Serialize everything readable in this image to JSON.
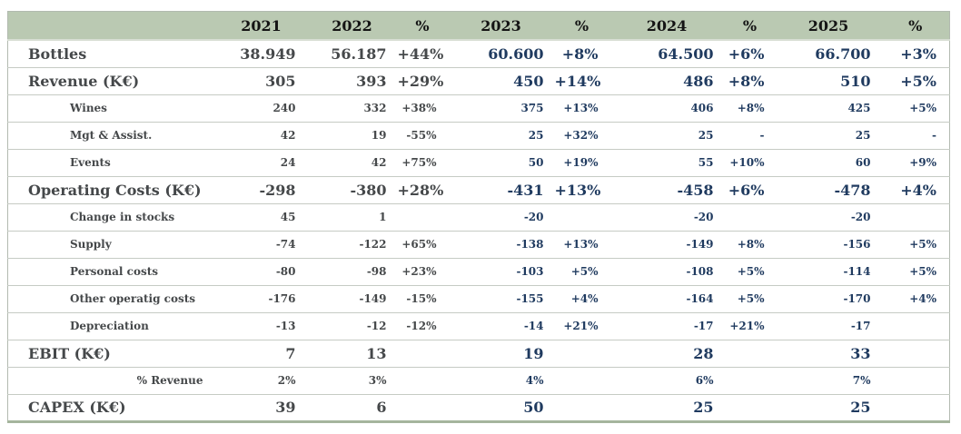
{
  "theme": {
    "header_bg": "#bac9b2",
    "header_text": "#141414",
    "past_years_text": "#45484a",
    "forecast_years_text": "#1f3a5f",
    "outer_border": "#b2bab0",
    "row_line": "#c6cbc4",
    "bottom_bar": "#a5b59d"
  },
  "table": {
    "columns": [
      "",
      "2021",
      "2022",
      "%",
      "2023",
      "%",
      "2024",
      "%",
      "2025",
      "%"
    ],
    "rows": [
      {
        "label": "Bottles",
        "level": "main",
        "cells": [
          "38.949",
          "56.187",
          "+44%",
          "60.600",
          "+8%",
          "64.500",
          "+6%",
          "66.700",
          "+3%"
        ]
      },
      {
        "label": "Revenue (K€)",
        "level": "main",
        "cells": [
          "305",
          "393",
          "+29%",
          "450",
          "+14%",
          "486",
          "+8%",
          "510",
          "+5%"
        ]
      },
      {
        "label": "Wines",
        "level": "sub",
        "cells": [
          "240",
          "332",
          "+38%",
          "375",
          "+13%",
          "406",
          "+8%",
          "425",
          "+5%"
        ]
      },
      {
        "label": "Mgt & Assist.",
        "level": "sub",
        "cells": [
          "42",
          "19",
          "-55%",
          "25",
          "+32%",
          "25",
          "-",
          "25",
          "-"
        ]
      },
      {
        "label": "Events",
        "level": "sub",
        "cells": [
          "24",
          "42",
          "+75%",
          "50",
          "+19%",
          "55",
          "+10%",
          "60",
          "+9%"
        ]
      },
      {
        "label": "Operating Costs (K€)",
        "level": "main",
        "cells": [
          "-298",
          "-380",
          "+28%",
          "-431",
          "+13%",
          "-458",
          "+6%",
          "-478",
          "+4%"
        ]
      },
      {
        "label": "Change in stocks",
        "level": "sub",
        "cells": [
          "45",
          "1",
          "",
          "-20",
          "",
          "-20",
          "",
          "-20",
          ""
        ]
      },
      {
        "label": "Supply",
        "level": "sub",
        "cells": [
          "-74",
          "-122",
          "+65%",
          "-138",
          "+13%",
          "-149",
          "+8%",
          "-156",
          "+5%"
        ]
      },
      {
        "label": "Personal costs",
        "level": "sub",
        "cells": [
          "-80",
          "-98",
          "+23%",
          "-103",
          "+5%",
          "-108",
          "+5%",
          "-114",
          "+5%"
        ]
      },
      {
        "label": "Other operatig costs",
        "level": "sub",
        "cells": [
          "-176",
          "-149",
          "-15%",
          "-155",
          "+4%",
          "-164",
          "+5%",
          "-170",
          "+4%"
        ]
      },
      {
        "label": "Depreciation",
        "level": "sub",
        "cells": [
          "-13",
          "-12",
          "-12%",
          "-14",
          "+21%",
          "-17",
          "+21%",
          "-17",
          ""
        ]
      },
      {
        "label": "EBIT (K€)",
        "level": "main",
        "cells": [
          "7",
          "13",
          "",
          "19",
          "",
          "28",
          "",
          "33",
          ""
        ]
      },
      {
        "label": "% Revenue",
        "level": "sub2",
        "cells": [
          "2%",
          "3%",
          "",
          "4%",
          "",
          "6%",
          "",
          "7%",
          ""
        ]
      },
      {
        "label": "CAPEX (K€)",
        "level": "main",
        "cells": [
          "39",
          "6",
          "",
          "50",
          "",
          "25",
          "",
          "25",
          ""
        ]
      }
    ]
  }
}
